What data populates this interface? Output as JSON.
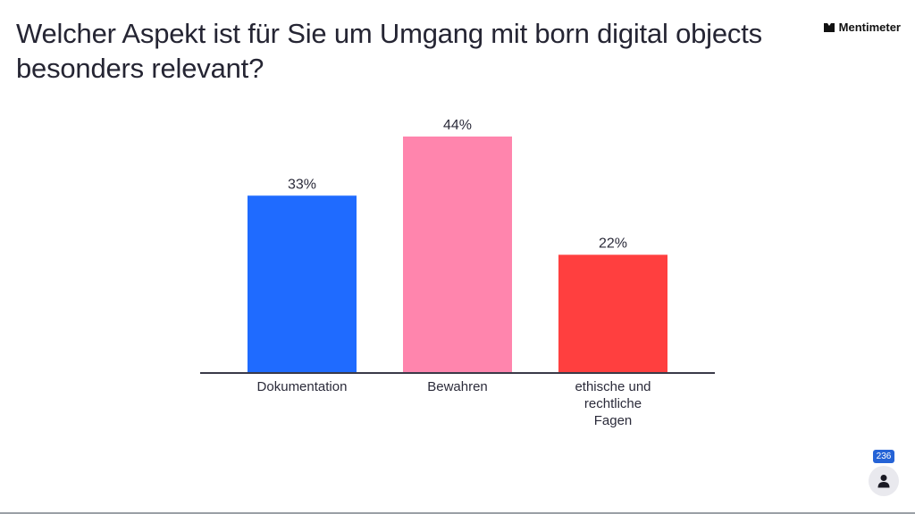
{
  "slide": {
    "question": "Welcher Aspekt ist für Sie um Umgang mit born digital objects besonders relevant?",
    "brand": "Mentimeter",
    "response_count": "236"
  },
  "chart_data": {
    "type": "bar",
    "title": "",
    "xlabel": "",
    "ylabel": "",
    "categories": [
      "Dokumentation",
      "Bewahren",
      "ethische und\nrechtliche\nFagen"
    ],
    "values": [
      33,
      44,
      22
    ],
    "value_labels": [
      "33%",
      "44%",
      "22%"
    ],
    "colors": [
      "#1f6bff",
      "#ff85ad",
      "#ff3f3f"
    ],
    "ylim": [
      0,
      44
    ],
    "grid": false,
    "legend": "none"
  }
}
